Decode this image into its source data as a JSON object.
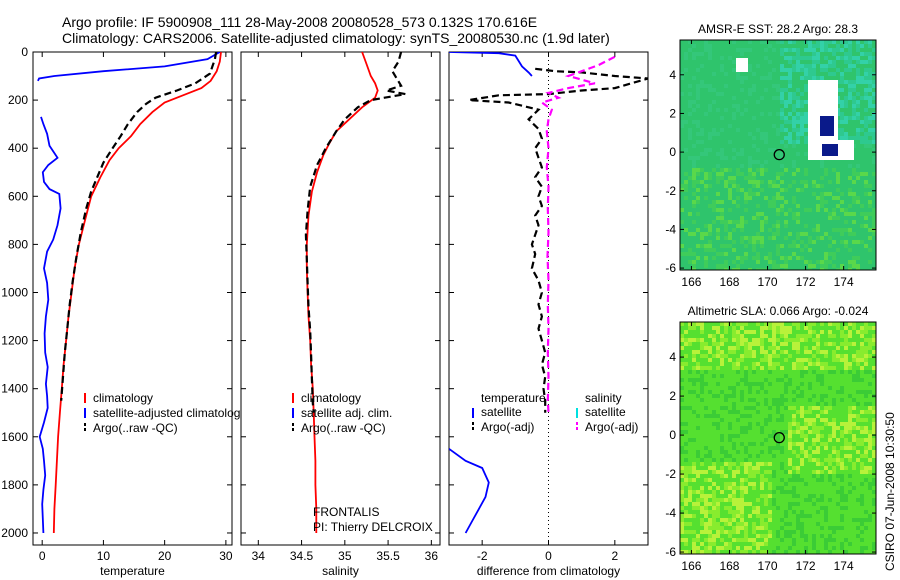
{
  "figure": {
    "title_line1": "Argo profile: IF 5900908_111 28-May-2008 20080528_573 0.132S 170.616E",
    "title_line2": "Climatology: CARS2006. Satellite-adjusted climatology: synTS_20080530.nc (1.9d later)",
    "credit": "CSIRO 07-Jun-2008 10:30:50",
    "frontalis": "FRONTALIS",
    "pi": "PI: Thierry DELCROIX"
  },
  "colors": {
    "climatology": "#ff0000",
    "satellite": "#0000ff",
    "argo": "#000000",
    "satellite_salt_diff": "#00e0e0",
    "argo_adj_salt": "#ff00ff",
    "sst_bg": "#2cc86a",
    "sla_bg": "#55ee22"
  },
  "chart_data": [
    {
      "type": "line",
      "id": "temperature",
      "xlabel": "temperature",
      "ylabel": "",
      "xlim": [
        -1.5,
        31
      ],
      "ylim": [
        2050,
        0
      ],
      "xticks": [
        0,
        10,
        20,
        30
      ],
      "yticks": [
        0,
        200,
        400,
        600,
        800,
        1000,
        1200,
        1400,
        1600,
        1800,
        2000
      ],
      "series": [
        {
          "name": "climatology",
          "style": "solid",
          "points": [
            [
              29.2,
              0
            ],
            [
              29.0,
              40
            ],
            [
              28.5,
              80
            ],
            [
              27.5,
              120
            ],
            [
              26,
              150
            ],
            [
              23,
              180
            ],
            [
              20,
              210
            ],
            [
              18,
              250
            ],
            [
              16,
              300
            ],
            [
              14.5,
              350
            ],
            [
              12.5,
              400
            ],
            [
              11,
              450
            ],
            [
              9.5,
              520
            ],
            [
              8,
              600
            ],
            [
              7,
              700
            ],
            [
              6,
              800
            ],
            [
              5.3,
              900
            ],
            [
              4.8,
              1000
            ],
            [
              4.3,
              1100
            ],
            [
              3.9,
              1200
            ],
            [
              3.5,
              1300
            ],
            [
              3.2,
              1400
            ],
            [
              2.9,
              1500
            ],
            [
              2.6,
              1600
            ],
            [
              2.4,
              1700
            ],
            [
              2.2,
              1800
            ],
            [
              2.0,
              1900
            ],
            [
              1.9,
              2000
            ]
          ]
        },
        {
          "name": "satellite-adjusted climatology",
          "style": "solid",
          "points": [
            [
              29.0,
              0
            ],
            [
              27,
              30
            ],
            [
              20,
              60
            ],
            [
              10,
              80
            ],
            [
              2,
              100
            ],
            [
              -0.5,
              110
            ],
            [
              -0.7,
              120
            ]
          ],
          "points2": [
            [
              -0.2,
              270
            ],
            [
              0.2,
              300
            ],
            [
              0.8,
              340
            ],
            [
              1.2,
              390
            ],
            [
              2.5,
              440
            ],
            [
              1.0,
              470
            ],
            [
              0.1,
              500
            ],
            [
              0.3,
              540
            ],
            [
              1.2,
              570
            ],
            [
              2.8,
              590
            ],
            [
              3.0,
              650
            ],
            [
              2.5,
              720
            ],
            [
              1.8,
              780
            ],
            [
              0.8,
              830
            ],
            [
              0.3,
              900
            ],
            [
              0.8,
              960
            ],
            [
              1.0,
              1030
            ],
            [
              0.6,
              1100
            ],
            [
              0.4,
              1170
            ],
            [
              0.5,
              1250
            ],
            [
              0.9,
              1310
            ],
            [
              0.6,
              1380
            ],
            [
              0.8,
              1430
            ],
            [
              0.9,
              1480
            ],
            [
              0.3,
              1540
            ],
            [
              -0.4,
              1600
            ],
            [
              0.1,
              1650
            ],
            [
              0.3,
              1700
            ],
            [
              0.5,
              1760
            ],
            [
              0.2,
              1820
            ],
            [
              0.0,
              1880
            ],
            [
              0.1,
              1940
            ],
            [
              0.2,
              2000
            ]
          ]
        },
        {
          "name": "Argo(..raw -QC)",
          "style": "dashed",
          "points": [
            [
              28.4,
              0
            ],
            [
              28.2,
              30
            ],
            [
              27.8,
              60
            ],
            [
              27.4,
              90
            ],
            [
              25,
              130
            ],
            [
              22,
              160
            ],
            [
              18.5,
              190
            ],
            [
              17,
              215
            ],
            [
              15.5,
              250
            ],
            [
              14,
              300
            ],
            [
              12.8,
              350
            ],
            [
              11.5,
              400
            ],
            [
              10,
              460
            ],
            [
              9,
              520
            ],
            [
              8,
              580
            ],
            [
              7.2,
              650
            ],
            [
              6.3,
              750
            ],
            [
              5.6,
              850
            ],
            [
              5.0,
              950
            ],
            [
              4.5,
              1050
            ],
            [
              4.1,
              1150
            ],
            [
              3.7,
              1250
            ],
            [
              3.4,
              1350
            ],
            [
              3.1,
              1450
            ]
          ]
        }
      ],
      "legend": {
        "placement": "lower-left",
        "entries": [
          "climatology",
          "satellite-adjusted climatology",
          "Argo(..raw -QC)"
        ]
      }
    },
    {
      "type": "line",
      "id": "salinity",
      "xlabel": "salinity",
      "ylabel": "",
      "xlim": [
        33.8,
        36.1
      ],
      "ylim": [
        2050,
        0
      ],
      "xticks": [
        34,
        34.5,
        35,
        35.5,
        36
      ],
      "yticks": [
        0,
        200,
        400,
        600,
        800,
        1000,
        1200,
        1400,
        1600,
        1800,
        2000
      ],
      "series": [
        {
          "name": "climatology",
          "style": "solid",
          "points": [
            [
              35.2,
              0
            ],
            [
              35.25,
              50
            ],
            [
              35.3,
              100
            ],
            [
              35.35,
              130
            ],
            [
              35.38,
              160
            ],
            [
              35.35,
              190
            ],
            [
              35.2,
              230
            ],
            [
              35.05,
              280
            ],
            [
              34.9,
              330
            ],
            [
              34.82,
              380
            ],
            [
              34.75,
              430
            ],
            [
              34.68,
              500
            ],
            [
              34.62,
              580
            ],
            [
              34.58,
              680
            ],
            [
              34.56,
              800
            ],
            [
              34.56,
              900
            ],
            [
              34.57,
              1000
            ],
            [
              34.58,
              1100
            ],
            [
              34.6,
              1200
            ],
            [
              34.61,
              1300
            ],
            [
              34.63,
              1400
            ],
            [
              34.64,
              1500
            ],
            [
              34.65,
              1600
            ],
            [
              34.66,
              1700
            ],
            [
              34.66,
              1800
            ],
            [
              34.67,
              1900
            ],
            [
              34.67,
              2000
            ]
          ]
        },
        {
          "name": "Argo(..raw -QC)",
          "style": "dashed",
          "points": [
            [
              35.65,
              0
            ],
            [
              35.62,
              40
            ],
            [
              35.55,
              80
            ],
            [
              35.6,
              110
            ],
            [
              35.65,
              140
            ],
            [
              35.48,
              160
            ],
            [
              35.7,
              175
            ],
            [
              35.3,
              200
            ],
            [
              35.15,
              230
            ],
            [
              35.0,
              280
            ],
            [
              34.9,
              330
            ],
            [
              34.78,
              400
            ],
            [
              34.68,
              470
            ],
            [
              34.6,
              560
            ],
            [
              34.57,
              660
            ],
            [
              34.55,
              760
            ],
            [
              34.56,
              860
            ],
            [
              34.57,
              960
            ],
            [
              34.58,
              1060
            ],
            [
              34.6,
              1160
            ],
            [
              34.61,
              1260
            ],
            [
              34.62,
              1360
            ],
            [
              34.63,
              1460
            ],
            [
              34.64,
              1500
            ]
          ]
        }
      ],
      "legend": {
        "placement": "lower-left",
        "entries": [
          "climatology",
          "satellite adj. clim.",
          "Argo(..raw -QC)"
        ]
      }
    },
    {
      "type": "line",
      "id": "difference",
      "xlabel": "difference from climatology",
      "ylabel": "",
      "xlim": [
        -3,
        3
      ],
      "ylim": [
        2050,
        0
      ],
      "xticks": [
        -2,
        0,
        2
      ],
      "yticks": [
        0,
        200,
        400,
        600,
        800,
        1000,
        1200,
        1400,
        1600,
        1800,
        2000
      ],
      "series": [
        {
          "name": "temperature satellite",
          "style": "solid",
          "points": [
            [
              -3.0,
              0
            ],
            [
              -1.5,
              5
            ],
            [
              -1.0,
              15
            ],
            [
              -0.8,
              60
            ],
            [
              -0.6,
              85
            ],
            [
              -0.5,
              100
            ]
          ],
          "points2": [
            [
              -3.0,
              1650
            ],
            [
              -2.5,
              1700
            ],
            [
              -2.0,
              1730
            ],
            [
              -1.8,
              1790
            ],
            [
              -1.9,
              1850
            ],
            [
              -2.1,
              1900
            ],
            [
              -2.3,
              1950
            ],
            [
              -2.5,
              2000
            ]
          ]
        },
        {
          "name": "temperature Argo(-adj)",
          "style": "dashed",
          "points": [
            [
              -0.4,
              70
            ],
            [
              0.2,
              80
            ],
            [
              1.0,
              85
            ],
            [
              2.0,
              100
            ],
            [
              3.0,
              110
            ],
            [
              2.5,
              130
            ],
            [
              2.0,
              150
            ],
            [
              1.0,
              160
            ],
            [
              0.0,
              175
            ],
            [
              -1.5,
              180
            ],
            [
              -2.4,
              200
            ],
            [
              -1.2,
              210
            ],
            [
              -0.3,
              240
            ],
            [
              -0.6,
              280
            ],
            [
              -0.3,
              320
            ],
            [
              -0.2,
              360
            ],
            [
              -0.4,
              400
            ],
            [
              -0.3,
              440
            ],
            [
              -0.2,
              480
            ],
            [
              -0.4,
              520
            ],
            [
              -0.2,
              560
            ],
            [
              -0.3,
              600
            ],
            [
              -0.2,
              640
            ],
            [
              -0.4,
              680
            ],
            [
              -0.3,
              720
            ],
            [
              -0.4,
              760
            ],
            [
              -0.5,
              800
            ],
            [
              -0.4,
              840
            ],
            [
              -0.5,
              900
            ],
            [
              -0.3,
              950
            ],
            [
              -0.2,
              1000
            ],
            [
              -0.3,
              1050
            ],
            [
              -0.2,
              1100
            ],
            [
              -0.3,
              1150
            ],
            [
              -0.2,
              1200
            ],
            [
              -0.1,
              1250
            ],
            [
              -0.2,
              1300
            ],
            [
              -0.1,
              1350
            ],
            [
              -0.15,
              1400
            ],
            [
              -0.1,
              1450
            ],
            [
              -0.1,
              1500
            ]
          ]
        },
        {
          "name": "salinity Argo(-adj)",
          "style": "dashed",
          "points": [
            [
              2.0,
              20
            ],
            [
              1.5,
              55
            ],
            [
              1.0,
              80
            ],
            [
              0.6,
              100
            ],
            [
              1.4,
              130
            ],
            [
              0.6,
              150
            ],
            [
              0.0,
              170
            ],
            [
              0.3,
              190
            ],
            [
              -0.2,
              210
            ],
            [
              0.1,
              240
            ],
            [
              0.0,
              280
            ],
            [
              -0.05,
              330
            ],
            [
              0.0,
              400
            ],
            [
              -0.05,
              480
            ],
            [
              0.0,
              560
            ],
            [
              -0.02,
              650
            ],
            [
              0.0,
              750
            ],
            [
              -0.03,
              850
            ],
            [
              0.0,
              950
            ],
            [
              -0.02,
              1050
            ],
            [
              0.0,
              1150
            ],
            [
              -0.02,
              1250
            ],
            [
              0.0,
              1350
            ],
            [
              -0.02,
              1450
            ],
            [
              0.0,
              1500
            ]
          ]
        }
      ],
      "legend": {
        "placement": "lower-left",
        "col1_header": "temperature",
        "col2_header": "salinity",
        "col1": [
          "satellite",
          "Argo(-adj)"
        ],
        "col2": [
          "satellite",
          "Argo(-adj)"
        ]
      }
    },
    {
      "type": "heatmap",
      "id": "sst-map",
      "title": "AMSR-E SST: 28.2 Argo: 28.3",
      "xlim": [
        165.4,
        175.7
      ],
      "ylim": [
        -6.1,
        5.8
      ],
      "xticks": [
        166,
        168,
        170,
        172,
        174
      ],
      "yticks": [
        -6,
        -4,
        -2,
        0,
        2,
        4
      ],
      "profile_marker": [
        170.616,
        -0.132
      ]
    },
    {
      "type": "heatmap",
      "id": "sla-map",
      "title": "Altimetric SLA: 0.066 Argo: -0.024",
      "xlim": [
        165.4,
        175.7
      ],
      "ylim": [
        -6.1,
        5.8
      ],
      "xticks": [
        166,
        168,
        170,
        172,
        174
      ],
      "yticks": [
        -6,
        -4,
        -2,
        0,
        2,
        4
      ],
      "profile_marker": [
        170.616,
        -0.132
      ]
    }
  ]
}
